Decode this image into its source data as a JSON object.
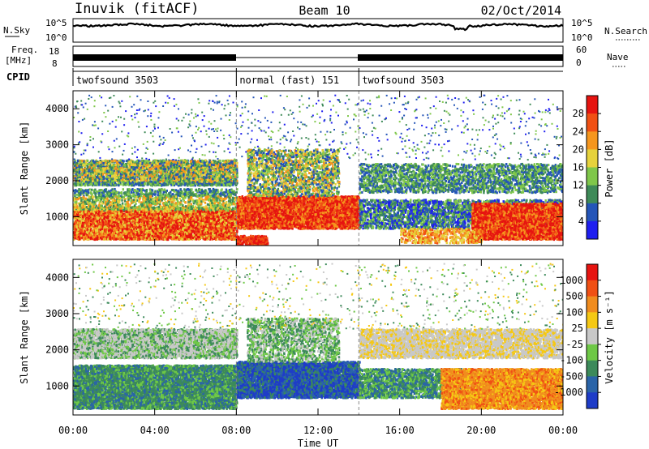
{
  "header": {
    "left": "Inuvik (fitACF)",
    "center": "Beam 10",
    "right": "02/Oct/2014"
  },
  "noise_panel": {
    "left_label": "N.Sky",
    "right_label": "N.Search",
    "left_ticks": [
      "10^5",
      "10^0"
    ],
    "right_ticks": [
      "10^5",
      "10^0"
    ]
  },
  "freq_panel": {
    "left_label_1": "Freq.",
    "left_label_2": "[MHz]",
    "right_label": "Nave",
    "left_ticks": [
      "18",
      "8"
    ],
    "right_ticks": [
      "60",
      "0"
    ]
  },
  "cpid": {
    "label": "CPID",
    "segments": [
      {
        "name": "twofsound 3503",
        "start_hour": 0,
        "end_hour": 8
      },
      {
        "name": "normal (fast) 151",
        "start_hour": 8,
        "end_hour": 14
      },
      {
        "name": "twofsound 3503",
        "start_hour": 14,
        "end_hour": 24
      }
    ]
  },
  "chart_data": [
    {
      "type": "heatmap",
      "title": "",
      "xlabel": "Time UT",
      "ylabel": "Slant Range [km]",
      "xlim": [
        0,
        24
      ],
      "ylim": [
        200,
        4500
      ],
      "x_ticks": [
        "00:00",
        "04:00",
        "08:00",
        "12:00",
        "16:00",
        "20:00",
        "00:00"
      ],
      "y_ticks": [
        1000,
        2000,
        3000,
        4000
      ],
      "colorbar": {
        "label": "Power [dB]",
        "ticks": [
          4,
          8,
          12,
          16,
          20,
          24,
          28
        ],
        "colors": [
          "#1f1ff0",
          "#2455b8",
          "#3e8a58",
          "#7fc74a",
          "#e6d23c",
          "#f5961e",
          "#f05014",
          "#e61410"
        ]
      }
    },
    {
      "type": "heatmap",
      "title": "",
      "xlabel": "Time UT",
      "ylabel": "Slant Range [km]",
      "xlim": [
        0,
        24
      ],
      "ylim": [
        200,
        4500
      ],
      "x_ticks": [
        "00:00",
        "04:00",
        "08:00",
        "12:00",
        "16:00",
        "20:00",
        "00:00"
      ],
      "y_ticks": [
        1000,
        2000,
        3000,
        4000
      ],
      "colorbar": {
        "label": "Velocity [m s⁻¹]",
        "ticks": [
          "1000",
          "500",
          "100",
          "25",
          "-25",
          "-100",
          "-500",
          "-1000"
        ],
        "colors": [
          "#1e3cc8",
          "#2a64a8",
          "#3c8a5a",
          "#6ec846",
          "#c8c8c8",
          "#f5c814",
          "#f08c1e",
          "#f05014",
          "#e61410"
        ]
      }
    }
  ]
}
